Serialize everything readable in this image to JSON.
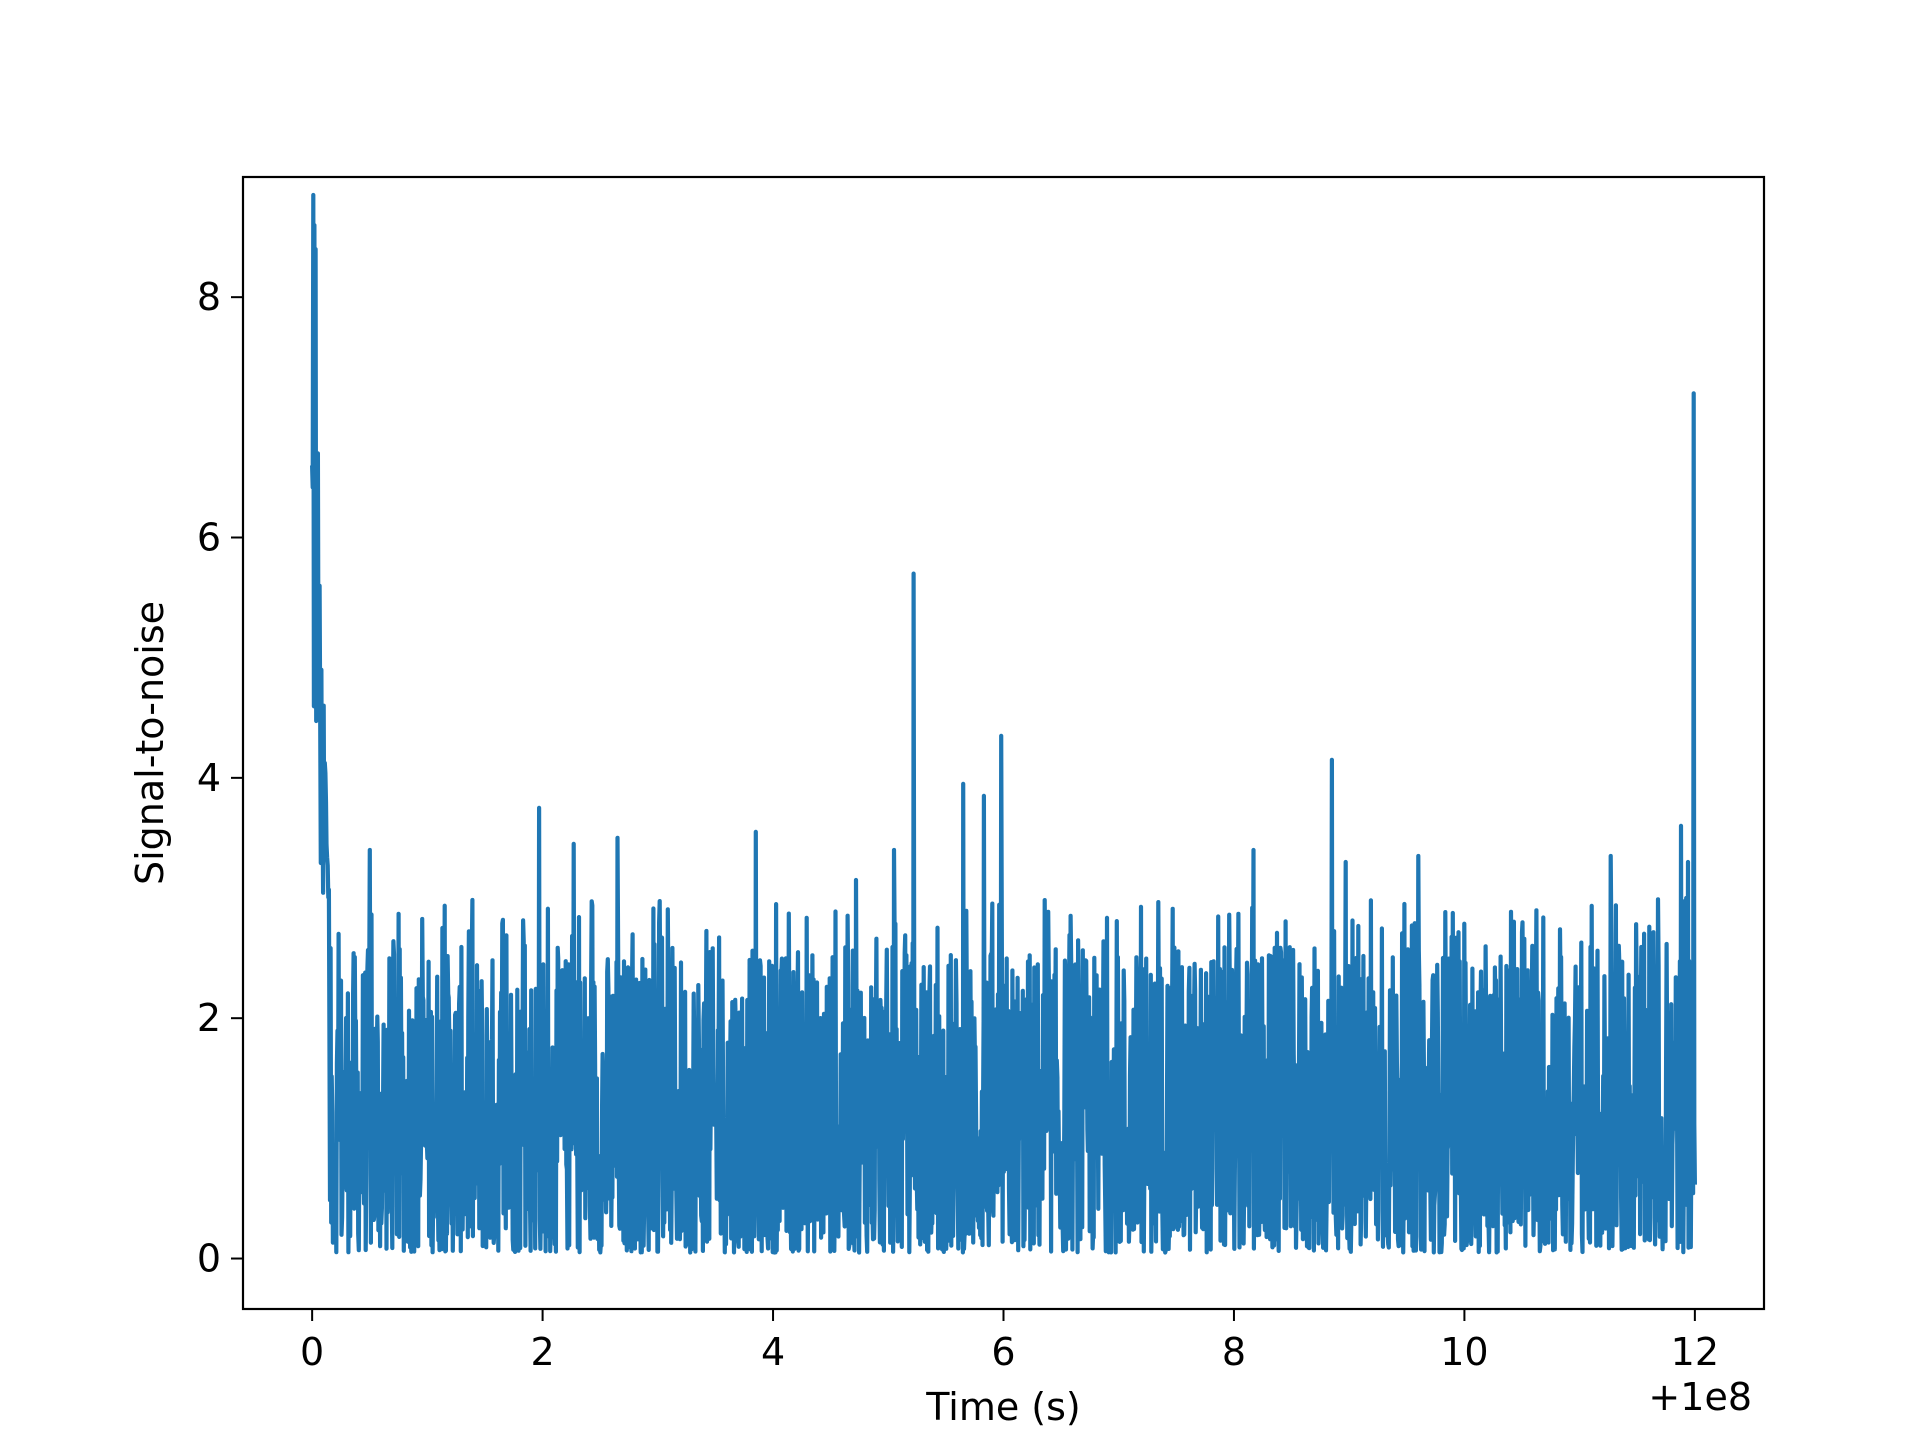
{
  "chart_data": {
    "type": "line",
    "title": "",
    "xlabel": "Time (s)",
    "ylabel": "Signal-to-noise",
    "x_offset_label": "+1e8",
    "xlim": [
      -0.6,
      12.6
    ],
    "ylim": [
      -0.42,
      9.0
    ],
    "xticks": [
      0,
      2,
      4,
      6,
      8,
      10,
      12
    ],
    "yticks": [
      0,
      2,
      4,
      6,
      8
    ],
    "grid": false,
    "line_color": "#1f77b4",
    "series": [
      {
        "x_range": [
          0.0,
          12.0
        ],
        "n_points": 2400,
        "baseline_mean": 1.0,
        "baseline_noise_min": 0.05,
        "baseline_noise_max": 2.6,
        "peaks": [
          {
            "x": 0.01,
            "y": 8.85
          },
          {
            "x": 0.02,
            "y": 8.6
          },
          {
            "x": 0.03,
            "y": 8.4
          },
          {
            "x": 0.0,
            "y": 6.6
          },
          {
            "x": 0.05,
            "y": 6.7
          },
          {
            "x": 0.08,
            "y": 4.9
          },
          {
            "x": 0.1,
            "y": 4.6
          },
          {
            "x": 0.12,
            "y": 3.8
          },
          {
            "x": 0.5,
            "y": 3.4
          },
          {
            "x": 1.97,
            "y": 3.75
          },
          {
            "x": 2.27,
            "y": 3.45
          },
          {
            "x": 2.65,
            "y": 3.5
          },
          {
            "x": 3.85,
            "y": 3.55
          },
          {
            "x": 4.72,
            "y": 3.15
          },
          {
            "x": 5.05,
            "y": 3.4
          },
          {
            "x": 5.22,
            "y": 5.7
          },
          {
            "x": 5.65,
            "y": 3.95
          },
          {
            "x": 5.83,
            "y": 3.85
          },
          {
            "x": 5.98,
            "y": 4.35
          },
          {
            "x": 8.17,
            "y": 3.4
          },
          {
            "x": 8.85,
            "y": 4.15
          },
          {
            "x": 8.97,
            "y": 3.3
          },
          {
            "x": 9.6,
            "y": 3.35
          },
          {
            "x": 11.27,
            "y": 3.35
          },
          {
            "x": 11.88,
            "y": 3.6
          },
          {
            "x": 11.94,
            "y": 3.3
          },
          {
            "x": 11.99,
            "y": 7.2
          }
        ]
      }
    ]
  }
}
